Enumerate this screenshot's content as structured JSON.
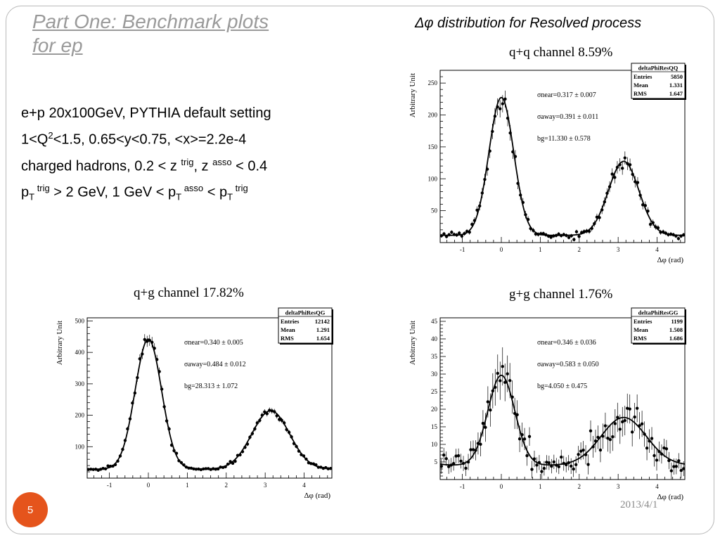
{
  "slide": {
    "title_line1": "Part One: Benchmark plots",
    "title_line2": "for ep",
    "right_title": "Δφ distribution for Resolved process",
    "page_number": "5",
    "date": "2013/4/1"
  },
  "info": {
    "line1": "e+p 20x100GeV, PYTHIA default setting",
    "line2": {
      "a": "1<Q",
      "sup": "2",
      "b": "<1.5,  0.65<y<0.75, <x>=2.2e-4"
    },
    "line3": {
      "a": "charged hadrons, 0.2 < z ",
      "sup1": "trig",
      "b": ", z ",
      "sup2": "asso",
      "c": " < 0.4"
    },
    "line4": {
      "p1": "p",
      "sub1": "T",
      "sup1": " trig",
      "b": " > 2 GeV, 1 GeV < p",
      "sub2": "T",
      "sup2": " asso",
      "c": " < p",
      "sub3": "T",
      "sup3": " trig"
    }
  },
  "chart_data": [
    {
      "type": "scatter",
      "label": "q+q channel  8.59%",
      "stats_title": "deltaPhiResQQ",
      "stats": [
        [
          "Entries",
          "5850"
        ],
        [
          "Mean",
          "1.331"
        ],
        [
          "RMS",
          "1.647"
        ]
      ],
      "fit": [
        "σnear=0.317 ± 0.007",
        "σaway=0.391 ± 0.011",
        "bg=11.330 ± 0.578"
      ],
      "xlabel": "Δφ (rad)",
      "ylabel": "Arbitrary Unit",
      "xlim": [
        -1.5708,
        4.7124
      ],
      "ylim": [
        0,
        270
      ],
      "xticks": [
        -1,
        0,
        1,
        2,
        3,
        4
      ],
      "yticks": [
        50,
        100,
        150,
        200,
        250
      ],
      "model": {
        "bg": 11.33,
        "near_amp": 216,
        "near_sigma": 0.317,
        "away_amp": 116,
        "away_sigma": 0.391
      }
    },
    {
      "type": "scatter",
      "label": "q+g channel  17.82%",
      "stats_title": "deltaPhiResQG",
      "stats": [
        [
          "Entries",
          "12142"
        ],
        [
          "Mean",
          "1.291"
        ],
        [
          "RMS",
          "1.654"
        ]
      ],
      "fit": [
        "σnear=0.340 ± 0.005",
        "σaway=0.484 ± 0.012",
        "bg=28.313 ± 1.072"
      ],
      "xlabel": "Δφ (rad)",
      "ylabel": "Arbitrary Unit",
      "xlim": [
        -1.5708,
        4.7124
      ],
      "ylim": [
        0,
        510
      ],
      "xticks": [
        -1,
        0,
        1,
        2,
        3,
        4
      ],
      "yticks": [
        100,
        200,
        300,
        400,
        500
      ],
      "model": {
        "bg": 28.313,
        "near_amp": 414,
        "near_sigma": 0.34,
        "away_amp": 186,
        "away_sigma": 0.484
      }
    },
    {
      "type": "scatter",
      "label": "g+g channel  1.76%",
      "stats_title": "deltaPhiResGG",
      "stats": [
        [
          "Entries",
          "1199"
        ],
        [
          "Mean",
          "1.508"
        ],
        [
          "RMS",
          "1.686"
        ]
      ],
      "fit": [
        "σnear=0.346 ± 0.036",
        "σaway=0.583 ± 0.050",
        "bg=4.050 ± 0.475"
      ],
      "xlabel": "Δφ (rad)",
      "ylabel": "Arbitrary Unit",
      "xlim": [
        -1.5708,
        4.7124
      ],
      "ylim": [
        0,
        46
      ],
      "xticks": [
        -1,
        0,
        1,
        2,
        3,
        4
      ],
      "yticks": [
        5,
        10,
        15,
        20,
        25,
        30,
        35,
        40,
        45
      ],
      "model": {
        "bg": 4.05,
        "near_amp": 25.6,
        "near_sigma": 0.346,
        "away_amp": 13.6,
        "away_sigma": 0.583
      }
    }
  ]
}
